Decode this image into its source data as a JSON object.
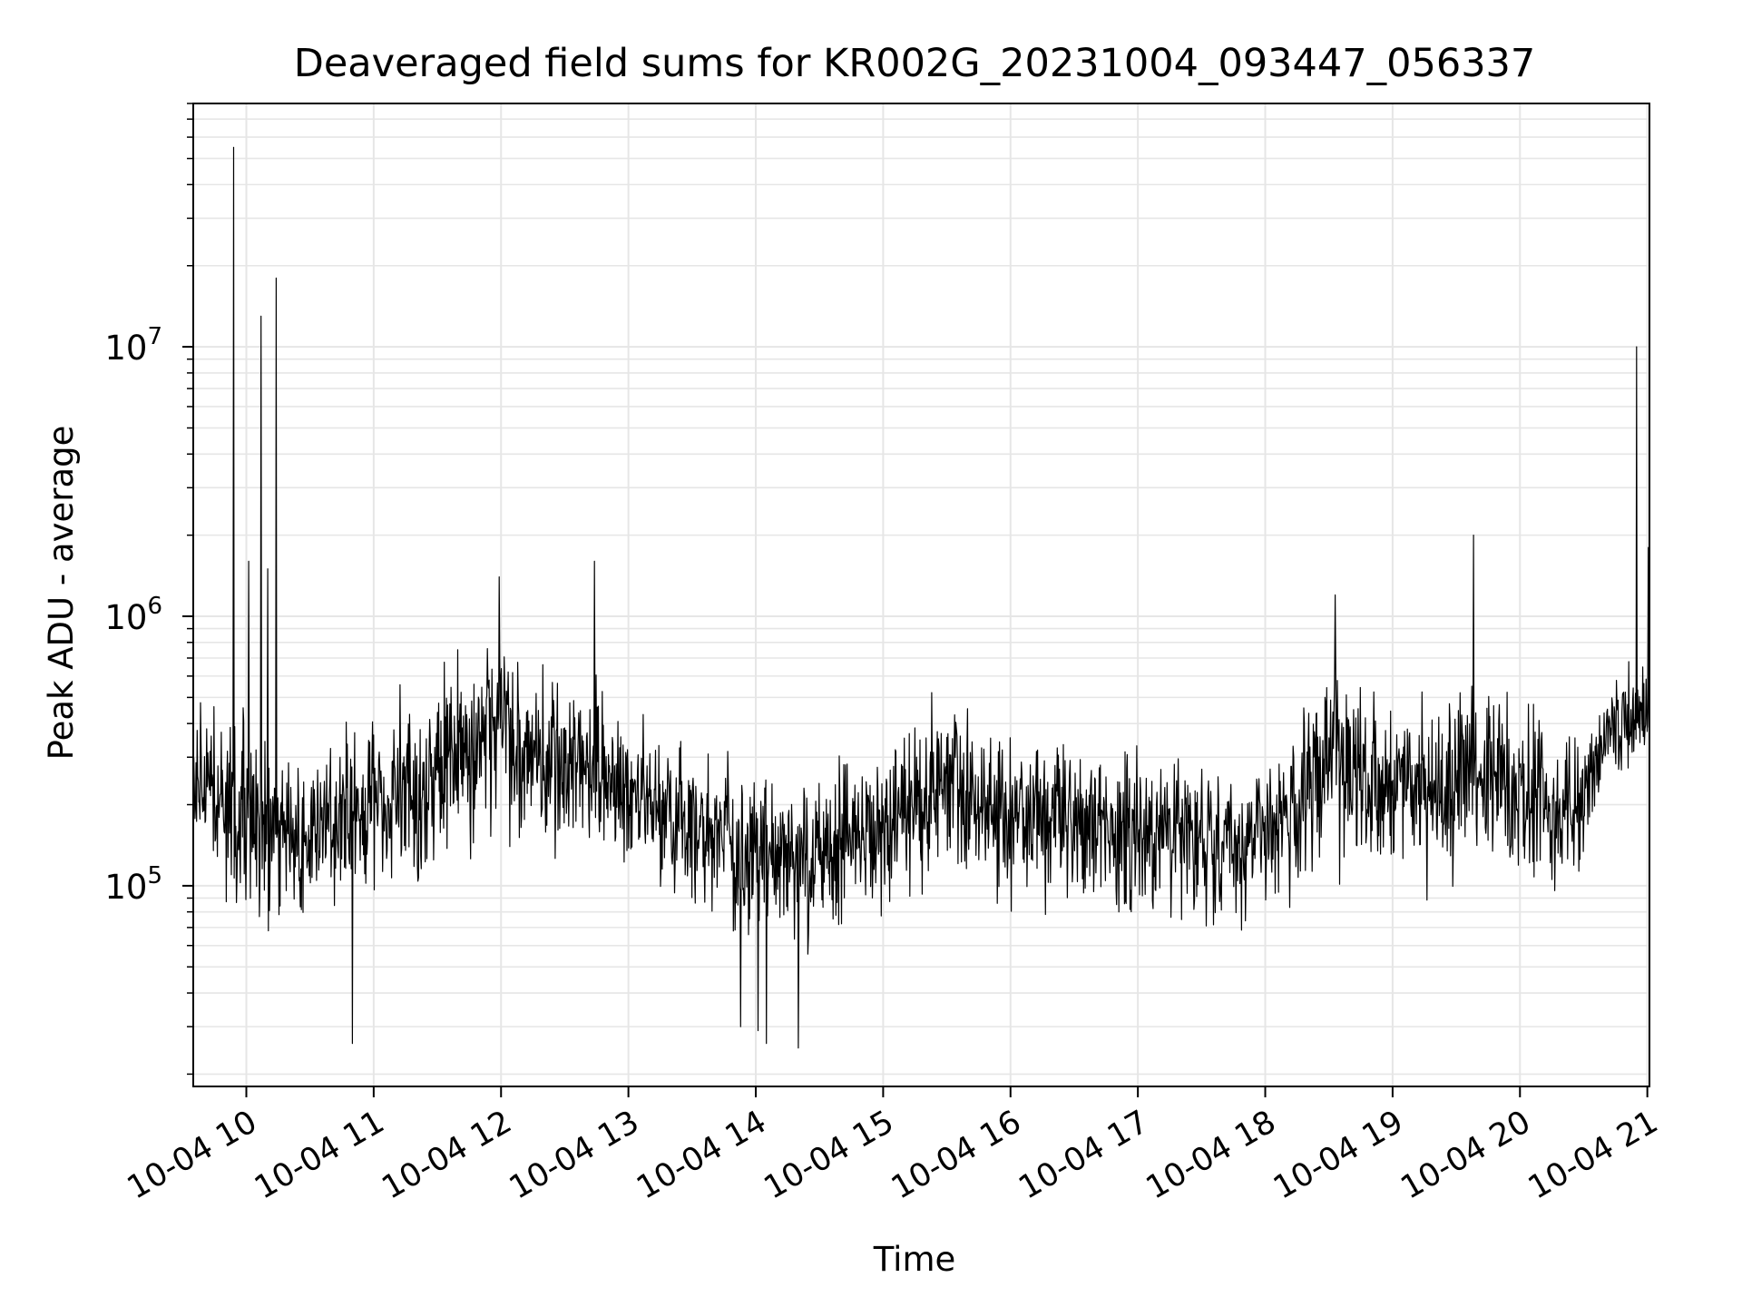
{
  "chart_data": {
    "type": "line",
    "title": "Deaveraged field sums for KR002G_20231004_093447_056337",
    "xlabel": "Time",
    "ylabel": "Peak ADU - average",
    "x_axis": {
      "scale": "time",
      "range": [
        "2023-10-04T09:35:00",
        "2023-10-04T21:01:00"
      ],
      "ticks": [
        {
          "value": "2023-10-04T10:00:00",
          "label": "10-04 10"
        },
        {
          "value": "2023-10-04T11:00:00",
          "label": "10-04 11"
        },
        {
          "value": "2023-10-04T12:00:00",
          "label": "10-04 12"
        },
        {
          "value": "2023-10-04T13:00:00",
          "label": "10-04 13"
        },
        {
          "value": "2023-10-04T14:00:00",
          "label": "10-04 14"
        },
        {
          "value": "2023-10-04T15:00:00",
          "label": "10-04 15"
        },
        {
          "value": "2023-10-04T16:00:00",
          "label": "10-04 16"
        },
        {
          "value": "2023-10-04T17:00:00",
          "label": "10-04 17"
        },
        {
          "value": "2023-10-04T18:00:00",
          "label": "10-04 18"
        },
        {
          "value": "2023-10-04T19:00:00",
          "label": "10-04 19"
        },
        {
          "value": "2023-10-04T20:00:00",
          "label": "10-04 20"
        },
        {
          "value": "2023-10-04T21:00:00",
          "label": "10-04 21"
        }
      ]
    },
    "y_axis": {
      "scale": "log",
      "range": [
        18000,
        80000000
      ],
      "ticks": [
        {
          "value": 100000,
          "base": "10",
          "exp": "5"
        },
        {
          "value": 1000000,
          "base": "10",
          "exp": "6"
        },
        {
          "value": 10000000,
          "base": "10",
          "exp": "7"
        }
      ]
    },
    "grid": true,
    "legend": "none",
    "line_color": "#000000",
    "grid_color": "#e6e6e6",
    "series": [
      {
        "envelope": [
          {
            "x": "2023-10-04T09:35:00",
            "lo": 130000,
            "mid": 230000,
            "hi": 450000
          },
          {
            "x": "2023-10-04T09:55:00",
            "lo": 70000,
            "mid": 170000,
            "hi": 500000
          },
          {
            "x": "2023-10-04T10:15:00",
            "lo": 60000,
            "mid": 160000,
            "hi": 420000
          },
          {
            "x": "2023-10-04T10:40:00",
            "lo": 80000,
            "mid": 170000,
            "hi": 400000
          },
          {
            "x": "2023-10-04T11:05:00",
            "lo": 80000,
            "mid": 200000,
            "hi": 500000
          },
          {
            "x": "2023-10-04T11:30:00",
            "lo": 100000,
            "mid": 280000,
            "hi": 700000
          },
          {
            "x": "2023-10-04T11:55:00",
            "lo": 140000,
            "mid": 400000,
            "hi": 1000000
          },
          {
            "x": "2023-10-04T12:20:00",
            "lo": 110000,
            "mid": 300000,
            "hi": 700000
          },
          {
            "x": "2023-10-04T12:45:00",
            "lo": 120000,
            "mid": 270000,
            "hi": 650000
          },
          {
            "x": "2023-10-04T13:10:00",
            "lo": 90000,
            "mid": 190000,
            "hi": 400000
          },
          {
            "x": "2023-10-04T13:40:00",
            "lo": 70000,
            "mid": 160000,
            "hi": 320000
          },
          {
            "x": "2023-10-04T14:10:00",
            "lo": 55000,
            "mid": 140000,
            "hi": 300000
          },
          {
            "x": "2023-10-04T14:40:00",
            "lo": 60000,
            "mid": 140000,
            "hi": 300000
          },
          {
            "x": "2023-10-04T15:05:00",
            "lo": 70000,
            "mid": 170000,
            "hi": 380000
          },
          {
            "x": "2023-10-04T15:35:00",
            "lo": 100000,
            "mid": 250000,
            "hi": 600000
          },
          {
            "x": "2023-10-04T15:45:00",
            "lo": 80000,
            "mid": 180000,
            "hi": 380000
          },
          {
            "x": "2023-10-04T16:15:00",
            "lo": 80000,
            "mid": 180000,
            "hi": 380000
          },
          {
            "x": "2023-10-04T16:45:00",
            "lo": 70000,
            "mid": 170000,
            "hi": 380000
          },
          {
            "x": "2023-10-04T17:15:00",
            "lo": 70000,
            "mid": 160000,
            "hi": 320000
          },
          {
            "x": "2023-10-04T17:45:00",
            "lo": 65000,
            "mid": 140000,
            "hi": 260000
          },
          {
            "x": "2023-10-04T18:05:00",
            "lo": 80000,
            "mid": 160000,
            "hi": 320000
          },
          {
            "x": "2023-10-04T18:30:00",
            "lo": 120000,
            "mid": 330000,
            "hi": 800000
          },
          {
            "x": "2023-10-04T18:50:00",
            "lo": 100000,
            "mid": 220000,
            "hi": 500000
          },
          {
            "x": "2023-10-04T19:15:00",
            "lo": 90000,
            "mid": 230000,
            "hi": 550000
          },
          {
            "x": "2023-10-04T19:35:00",
            "lo": 100000,
            "mid": 280000,
            "hi": 650000
          },
          {
            "x": "2023-10-04T20:00:00",
            "lo": 90000,
            "mid": 210000,
            "hi": 500000
          },
          {
            "x": "2023-10-04T20:25:00",
            "lo": 80000,
            "mid": 170000,
            "hi": 350000
          },
          {
            "x": "2023-10-04T20:40:00",
            "lo": 200000,
            "mid": 380000,
            "hi": 650000
          },
          {
            "x": "2023-10-04T21:00:00",
            "lo": 280000,
            "mid": 430000,
            "hi": 700000
          }
        ],
        "spikes": [
          {
            "x": "2023-10-04T09:54:00",
            "y": 55000000
          },
          {
            "x": "2023-10-04T10:07:00",
            "y": 13000000
          },
          {
            "x": "2023-10-04T10:14:00",
            "y": 18000000
          },
          {
            "x": "2023-10-04T10:01:00",
            "y": 1600000
          },
          {
            "x": "2023-10-04T10:10:00",
            "y": 1500000
          },
          {
            "x": "2023-10-04T11:59:00",
            "y": 1400000
          },
          {
            "x": "2023-10-04T12:44:00",
            "y": 1600000
          },
          {
            "x": "2023-10-04T18:33:00",
            "y": 1200000
          },
          {
            "x": "2023-10-04T19:38:00",
            "y": 2000000
          },
          {
            "x": "2023-10-04T20:55:00",
            "y": 10000000
          },
          {
            "x": "2023-10-04T21:00:30",
            "y": 1800000
          },
          {
            "x": "2023-10-04T10:50:00",
            "y": 26000
          },
          {
            "x": "2023-10-04T14:05:00",
            "y": 26000
          },
          {
            "x": "2023-10-04T14:20:00",
            "y": 25000
          },
          {
            "x": "2023-10-04T14:01:00",
            "y": 29000
          },
          {
            "x": "2023-10-04T13:53:00",
            "y": 30000
          }
        ]
      }
    ]
  }
}
